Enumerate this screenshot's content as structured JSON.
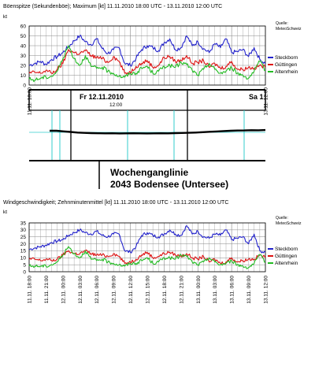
{
  "colors": {
    "steckborn": "#2222cc",
    "guettingen": "#dd1111",
    "altenrhein": "#22bb22",
    "grid": "#888888",
    "cyan": "#33cccc",
    "waterline": "#000000"
  },
  "chart_data": [
    {
      "id": "gust",
      "type": "line",
      "title": "Böenspitze (Sekundenböe); Maximum [kt]  11.11.2010 18:00 UTC - 13.11.2010 12:00 UTC",
      "ylabel": "kt",
      "source_label": "Quelle:",
      "source_name": "MeteoSchweiz",
      "ylim": [
        0,
        60
      ],
      "yticks": [
        0,
        10,
        20,
        30,
        40,
        50,
        60
      ],
      "xlim": [
        0,
        42
      ],
      "xticks": [
        0,
        42
      ],
      "xtick_labels": [
        "11.11. 18:00",
        "13.11. 12:00"
      ],
      "grid": true,
      "legend_position": "right",
      "series": [
        {
          "name": "Steckborn",
          "color_key": "steckborn",
          "values": [
            20,
            22,
            24,
            21,
            26,
            29,
            33,
            39,
            45,
            50,
            44,
            41,
            47,
            37,
            32,
            36,
            38,
            22,
            20,
            27,
            36,
            40,
            38,
            35,
            43,
            47,
            36,
            38,
            50,
            40,
            44,
            37,
            33,
            42,
            38,
            47,
            33,
            34,
            36,
            29,
            38,
            26,
            22
          ]
        },
        {
          "name": "Güttingen",
          "color_key": "guettingen",
          "values": [
            12,
            13,
            12,
            15,
            12,
            16,
            22,
            36,
            33,
            32,
            35,
            30,
            28,
            27,
            23,
            29,
            24,
            12,
            13,
            19,
            22,
            25,
            18,
            20,
            28,
            29,
            24,
            25,
            30,
            22,
            23,
            25,
            18,
            22,
            17,
            19,
            24,
            16,
            16,
            18,
            17,
            20,
            18
          ]
        },
        {
          "name": "Altenrhein",
          "color_key": "altenrhein",
          "values": [
            6,
            5,
            7,
            8,
            9,
            14,
            27,
            40,
            27,
            20,
            30,
            19,
            17,
            18,
            14,
            12,
            9,
            8,
            12,
            12,
            17,
            19,
            12,
            14,
            19,
            20,
            18,
            23,
            21,
            15,
            10,
            16,
            22,
            16,
            12,
            14,
            18,
            12,
            10,
            7,
            14,
            24,
            15
          ]
        }
      ]
    },
    {
      "id": "water",
      "type": "line",
      "title": "Wochenganglinie",
      "subtitle": "2043 Bodensee (Untersee)",
      "day_labels": [
        "Fr  12.11.2010",
        "Sa  1"
      ],
      "hour_label": "12:00",
      "series": [
        {
          "name": "",
          "values": [
            0,
            0,
            -0.5,
            -1,
            -1.5,
            -1.8,
            -2,
            -2.1,
            -2.2,
            -2.1,
            -2.3,
            -2.2,
            -2.1,
            -2.2,
            -2.3,
            -2.2,
            -2.1,
            -2.2,
            -2,
            -1.9,
            -1.7,
            -1.5,
            -1.2,
            -0.9,
            -0.6,
            -0.3,
            0,
            0.2,
            0.3,
            0.5,
            0.4,
            0.6
          ]
        }
      ]
    },
    {
      "id": "mean",
      "type": "line",
      "title": "Windgeschwindigkeit; Zehnminutenmittel [kt]  11.11.2010 18:00 UTC - 13.11.2010 12:00 UTC",
      "ylabel": "kt",
      "source_label": "Quelle:",
      "source_name": "MeteoSchweiz",
      "ylim": [
        0,
        35
      ],
      "yticks": [
        0,
        5,
        10,
        15,
        20,
        25,
        30,
        35
      ],
      "xlim": [
        0,
        42
      ],
      "xticks": [
        0,
        3,
        6,
        9,
        12,
        15,
        18,
        21,
        24,
        27,
        30,
        33,
        36,
        39,
        42
      ],
      "xtick_labels": [
        "11.11. 18:00",
        "11.11. 21:00",
        "12.11. 00:00",
        "12.11. 03:00",
        "12.11. 06:00",
        "12.11. 09:00",
        "12.11. 12:00",
        "12.11. 15:00",
        "12.11. 18:00",
        "12.11. 21:00",
        "13.11. 00:00",
        "13.11. 03:00",
        "13.11. 06:00",
        "13.11. 09:00",
        "13.11. 12:00"
      ],
      "grid": true,
      "legend_position": "right",
      "series": [
        {
          "name": "Steckborn",
          "color_key": "steckborn",
          "values": [
            16,
            17,
            18,
            19,
            21,
            22,
            23,
            26,
            28,
            30,
            28,
            27,
            29,
            26,
            25,
            27,
            27,
            15,
            14,
            18,
            26,
            28,
            26,
            25,
            27,
            30,
            27,
            26,
            33,
            27,
            29,
            25,
            24,
            27,
            26,
            30,
            23,
            24,
            25,
            20,
            27,
            15,
            14
          ]
        },
        {
          "name": "Güttingen",
          "color_key": "guettingen",
          "values": [
            9,
            9,
            8,
            9,
            8,
            9,
            12,
            15,
            13,
            13,
            15,
            13,
            12,
            12,
            11,
            13,
            11,
            6,
            7,
            9,
            12,
            14,
            10,
            11,
            13,
            14,
            12,
            11,
            13,
            10,
            9,
            11,
            7,
            9,
            6,
            7,
            10,
            7,
            8,
            9,
            9,
            12,
            10
          ]
        },
        {
          "name": "Altenrhein",
          "color_key": "altenrhein",
          "values": [
            4,
            4,
            4,
            4,
            5,
            7,
            12,
            18,
            13,
            10,
            15,
            9,
            8,
            9,
            7,
            6,
            5,
            4,
            6,
            6,
            8,
            10,
            6,
            7,
            10,
            10,
            9,
            12,
            11,
            7,
            5,
            7,
            10,
            7,
            5,
            6,
            8,
            5,
            4,
            3,
            6,
            12,
            7
          ]
        }
      ]
    }
  ]
}
